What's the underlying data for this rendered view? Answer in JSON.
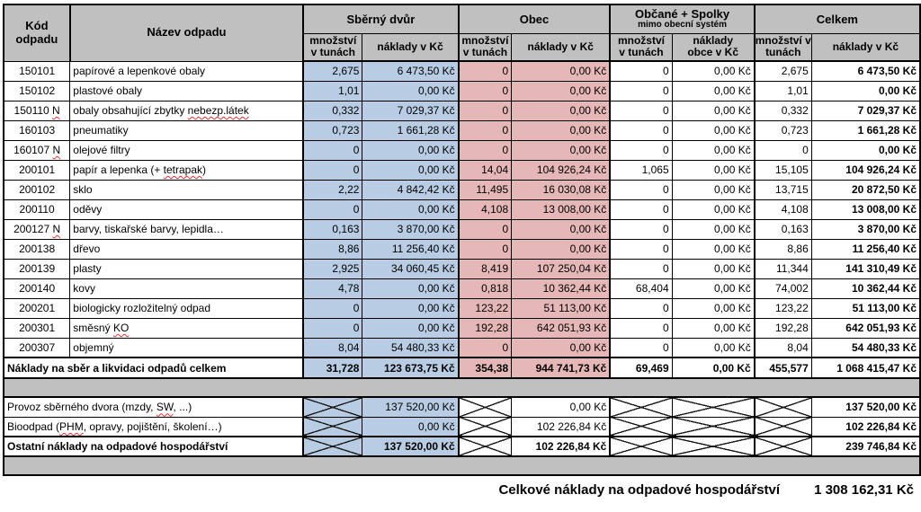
{
  "colors": {
    "blue": "#b8cce4",
    "pink": "#e5b8b7",
    "gray": "#c0c0c0",
    "spell": "#ff2a2a"
  },
  "header": {
    "code": "Kód odpadu",
    "name": "Název odpadu",
    "groups": [
      {
        "label": "Sběrný dvůr"
      },
      {
        "label": "Obec"
      },
      {
        "label": "Občané + Spolky",
        "sublabel": "mimo obecní systém"
      },
      {
        "label": "Celkem"
      }
    ],
    "subheaders": [
      [
        "množství",
        "v tunách"
      ],
      [
        "náklady v Kč"
      ],
      [
        "množství",
        "v tunách"
      ],
      [
        "náklady v Kč"
      ],
      [
        "množství",
        "v tunách"
      ],
      [
        "náklady",
        "obce v Kč"
      ],
      [
        "množství v",
        "tunách"
      ],
      [
        "náklady v Kč"
      ]
    ]
  },
  "rows": [
    {
      "code": "150101",
      "name": "papírové a lepenkové obaly",
      "sd_qty": "2,675",
      "sd_cost": "6 473,50 Kč",
      "obec_qty": "0",
      "obec_cost": "0,00 Kč",
      "obc_qty": "0",
      "obc_cost": "0,00 Kč",
      "tot_qty": "2,675",
      "tot_cost": "6 473,50 Kč"
    },
    {
      "code": "150102",
      "name": "plastové obaly",
      "sd_qty": "1,01",
      "sd_cost": "0,00 Kč",
      "obec_qty": "0",
      "obec_cost": "0,00 Kč",
      "obc_qty": "0",
      "obc_cost": "0,00 Kč",
      "tot_qty": "1,01",
      "tot_cost": "0,00 Kč"
    },
    {
      "code": "150110 N",
      "code_mark": "N",
      "name": "obaly obsahující zbytky nebezp.látek",
      "name_mark": "nebezp.látek",
      "sd_qty": "0,332",
      "sd_cost": "7 029,37 Kč",
      "obec_qty": "0",
      "obec_cost": "0,00 Kč",
      "obc_qty": "0",
      "obc_cost": "0,00 Kč",
      "tot_qty": "0,332",
      "tot_cost": "7 029,37 Kč"
    },
    {
      "code": "160103",
      "name": "pneumatiky",
      "sd_qty": "0,723",
      "sd_cost": "1 661,28 Kč",
      "obec_qty": "0",
      "obec_cost": "0,00 Kč",
      "obc_qty": "0",
      "obc_cost": "0,00 Kč",
      "tot_qty": "0,723",
      "tot_cost": "1 661,28 Kč"
    },
    {
      "code": "160107 N",
      "code_mark": "N",
      "name": "olejové filtry",
      "sd_qty": "0",
      "sd_cost": "0,00 Kč",
      "obec_qty": "0",
      "obec_cost": "0,00 Kč",
      "obc_qty": "0",
      "obc_cost": "0,00 Kč",
      "tot_qty": "0",
      "tot_cost": "0,00 Kč"
    },
    {
      "code": "200101",
      "name": "papír a lepenka (+ tetrapak)",
      "name_mark": "tetrapak",
      "sd_qty": "0",
      "sd_cost": "0,00 Kč",
      "obec_qty": "14,04",
      "obec_cost": "104 926,24 Kč",
      "obc_qty": "1,065",
      "obc_cost": "0,00 Kč",
      "tot_qty": "15,105",
      "tot_cost": "104 926,24 Kč"
    },
    {
      "code": "200102",
      "name": "sklo",
      "sd_qty": "2,22",
      "sd_cost": "4 842,42 Kč",
      "obec_qty": "11,495",
      "obec_cost": "16 030,08 Kč",
      "obc_qty": "0",
      "obc_cost": "0,00 Kč",
      "tot_qty": "13,715",
      "tot_cost": "20 872,50 Kč"
    },
    {
      "code": "200110",
      "name": "oděvy",
      "sd_qty": "0",
      "sd_cost": "0,00 Kč",
      "obec_qty": "4,108",
      "obec_cost": "13 008,00 Kč",
      "obc_qty": "0",
      "obc_cost": "0,00 Kč",
      "tot_qty": "4,108",
      "tot_cost": "13 008,00 Kč"
    },
    {
      "code": "200127 N",
      "code_mark": "N",
      "name": "barvy, tiskařské barvy, lepidla…",
      "sd_qty": "0,163",
      "sd_cost": "3 870,00 Kč",
      "obec_qty": "0",
      "obec_cost": "0,00 Kč",
      "obc_qty": "0",
      "obc_cost": "0,00 Kč",
      "tot_qty": "0,163",
      "tot_cost": "3 870,00 Kč"
    },
    {
      "code": "200138",
      "name": "dřevo",
      "sd_qty": "8,86",
      "sd_cost": "11 256,40 Kč",
      "obec_qty": "0",
      "obec_cost": "0,00 Kč",
      "obc_qty": "0",
      "obc_cost": "0,00 Kč",
      "tot_qty": "8,86",
      "tot_cost": "11 256,40 Kč"
    },
    {
      "code": "200139",
      "name": "plasty",
      "sd_qty": "2,925",
      "sd_cost": "34 060,45 Kč",
      "obec_qty": "8,419",
      "obec_cost": "107 250,04 Kč",
      "obc_qty": "0",
      "obc_cost": "0,00 Kč",
      "tot_qty": "11,344",
      "tot_cost": "141 310,49 Kč"
    },
    {
      "code": "200140",
      "name": "kovy",
      "sd_qty": "4,78",
      "sd_cost": "0,00 Kč",
      "obec_qty": "0,818",
      "obec_cost": "10 362,44 Kč",
      "obc_qty": "68,404",
      "obc_cost": "0,00 Kč",
      "tot_qty": "74,002",
      "tot_cost": "10 362,44 Kč"
    },
    {
      "code": "200201",
      "name": "biologicky rozložitelný odpad",
      "sd_qty": "0",
      "sd_cost": "0,00 Kč",
      "obec_qty": "123,22",
      "obec_cost": "51 113,00 Kč",
      "obc_qty": "0",
      "obc_cost": "0,00 Kč",
      "tot_qty": "123,22",
      "tot_cost": "51 113,00 Kč"
    },
    {
      "code": "200301",
      "name": "směsný KO",
      "name_mark": "KO",
      "sd_qty": "0",
      "sd_cost": "0,00 Kč",
      "obec_qty": "192,28",
      "obec_cost": "642 051,93 Kč",
      "obc_qty": "0",
      "obc_cost": "0,00 Kč",
      "tot_qty": "192,28",
      "tot_cost": "642 051,93 Kč"
    },
    {
      "code": "200307",
      "name": "objemný",
      "sd_qty": "8,04",
      "sd_cost": "54 480,33 Kč",
      "obec_qty": "0",
      "obec_cost": "0,00 Kč",
      "obc_qty": "0",
      "obc_cost": "0,00 Kč",
      "tot_qty": "8,04",
      "tot_cost": "54 480,33 Kč"
    }
  ],
  "total_row": {
    "label": "Náklady na sběr a likvidaci odpadů celkem",
    "sd_qty": "31,728",
    "sd_cost": "123 673,75 Kč",
    "obec_qty": "354,38",
    "obec_cost": "944 741,73 Kč",
    "obc_qty": "69,469",
    "obc_cost": "0,00 Kč",
    "tot_qty": "455,577",
    "tot_cost": "1 068 415,47 Kč"
  },
  "extra_rows": [
    {
      "label": "Provoz sběrného dvora (mzdy, SW, ...)",
      "label_mark": "SW",
      "sd_cost": "137 520,00 Kč",
      "obec_cost": "0,00 Kč",
      "tot_cost": "137 520,00 Kč",
      "bold": false
    },
    {
      "label": "Bioodpad (PHM, opravy, pojištění, školení…)",
      "label_mark": "PHM",
      "sd_cost": "0,00 Kč",
      "obec_cost": "102 226,84 Kč",
      "tot_cost": "102 226,84 Kč",
      "bold": false
    },
    {
      "label": "Ostatní náklady na odpadové hospodářství",
      "sd_cost": "137 520,00 Kč",
      "obec_cost": "102 226,84 Kč",
      "tot_cost": "239 746,84 Kč",
      "bold": true
    }
  ],
  "grand_total": {
    "label": "Celkové náklady na odpadové hospodářství",
    "value": "1 308 162,31 Kč"
  }
}
